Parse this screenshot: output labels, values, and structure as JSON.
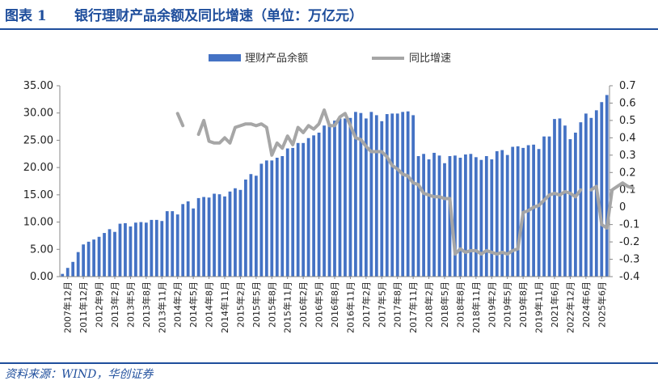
{
  "header": {
    "figure_no": "图表 1",
    "title": "银行理财产品余额及同比增速（单位：万亿元）"
  },
  "footer": {
    "source": "资料来源：WIND，华创证券"
  },
  "colors": {
    "bar": "#4472c4",
    "line": "#a6a6a6",
    "accent": "#1f4e9c"
  },
  "chart_data": {
    "type": "bar",
    "grid": false,
    "legend_position": "top-center",
    "y_left": {
      "min": 0,
      "max": 35,
      "step": 5,
      "ticks": [
        "0.00",
        "5.00",
        "10.00",
        "15.00",
        "20.00",
        "25.00",
        "30.00",
        "35.00"
      ]
    },
    "y_right": {
      "min": -0.4,
      "max": 0.7,
      "step": 0.1,
      "ticks": [
        "-0.4",
        "-0.3",
        "-0.2",
        "-0.1",
        "0",
        "0.1",
        "0.2",
        "0.3",
        "0.4",
        "0.5",
        "0.6",
        "0.7"
      ]
    },
    "x_tick_labels": [
      "2007年12月",
      "2011年12月",
      "2012年9月",
      "2013年2月",
      "2013年5月",
      "2013年8月",
      "2013年11月",
      "2014年2月",
      "2014年5月",
      "2014年8月",
      "2014年11月",
      "2015年2月",
      "2015年5月",
      "2015年8月",
      "2015年11月",
      "2016年2月",
      "2016年5月",
      "2016年8月",
      "2016年11月",
      "2017年2月",
      "2017年5月",
      "2017年8月",
      "2017年11月",
      "2018年2月",
      "2018年5月",
      "2018年8月",
      "2018年11月",
      "2019年2月",
      "2019年5月",
      "2019年8月",
      "2019年11月",
      "2021年6月",
      "2022年12月",
      "2024年6月",
      "2025年6月"
    ],
    "series": [
      {
        "name": "理财产品余额",
        "kind": "bar",
        "axis": "left",
        "values": [
          0.5,
          1.6,
          2.7,
          4.5,
          5.9,
          6.4,
          6.8,
          7.3,
          8.0,
          8.7,
          8.2,
          9.7,
          9.8,
          9.2,
          9.9,
          10.0,
          9.9,
          10.4,
          10.4,
          10.2,
          12.0,
          12.0,
          11.4,
          13.3,
          13.8,
          12.5,
          14.4,
          14.6,
          14.5,
          15.2,
          15.1,
          14.7,
          15.6,
          16.2,
          15.9,
          17.8,
          18.8,
          18.5,
          20.7,
          21.3,
          21.3,
          21.8,
          22.1,
          23.5,
          23.6,
          24.5,
          24.5,
          25.4,
          25.9,
          26.4,
          27.7,
          28.0,
          28.6,
          29.0,
          29.0,
          29.1,
          30.2,
          30.0,
          29.0,
          30.2,
          29.6,
          28.5,
          29.8,
          29.9,
          29.9,
          30.2,
          30.3,
          29.6,
          22.1,
          22.5,
          21.5,
          22.7,
          22.2,
          20.8,
          22.1,
          22.2,
          21.8,
          22.4,
          22.5,
          21.9,
          21.4,
          22.1,
          21.5,
          23.0,
          23.2,
          22.3,
          23.8,
          23.9,
          23.6,
          24.1,
          24.2,
          23.4,
          25.7,
          25.7,
          28.9,
          29.0,
          27.7,
          25.2,
          26.4,
          28.3,
          29.9,
          29.1,
          30.5,
          32.0,
          33.3
        ]
      },
      {
        "name": "同比增速",
        "kind": "line",
        "axis": "right",
        "values": [
          null,
          null,
          null,
          null,
          null,
          null,
          null,
          null,
          null,
          null,
          null,
          null,
          null,
          null,
          null,
          null,
          null,
          null,
          null,
          null,
          null,
          null,
          null,
          null,
          null,
          null,
          null,
          null,
          null,
          null,
          null,
          null,
          null,
          null,
          null,
          null,
          null,
          null,
          null,
          null,
          null,
          null,
          null,
          null,
          null,
          null,
          null,
          null,
          null,
          null,
          null,
          null,
          null,
          null,
          null,
          null,
          null,
          null,
          null,
          null,
          null,
          null,
          null,
          null,
          null,
          null,
          null,
          null,
          null,
          null,
          null,
          null,
          null,
          null,
          null,
          null,
          null,
          null,
          null,
          null,
          null,
          null,
          null,
          null,
          null,
          null,
          null,
          null,
          null,
          null,
          null,
          null,
          null,
          null,
          null,
          null,
          null,
          null,
          null,
          null,
          null,
          null,
          null,
          null,
          null
        ],
        "segments": [
          [
            [
              22,
              0.54
            ],
            [
              23,
              0.47
            ]
          ],
          [
            [
              26,
              0.42
            ],
            [
              27,
              0.5
            ],
            [
              28,
              0.38
            ],
            [
              29,
              0.37
            ],
            [
              30,
              0.37
            ],
            [
              31,
              0.4
            ],
            [
              32,
              0.37
            ],
            [
              33,
              0.46
            ],
            [
              34,
              0.47
            ],
            [
              35,
              0.48
            ],
            [
              36,
              0.48
            ],
            [
              37,
              0.47
            ],
            [
              38,
              0.48
            ],
            [
              39,
              0.46
            ],
            [
              40,
              0.3
            ],
            [
              41,
              0.37
            ],
            [
              42,
              0.34
            ],
            [
              43,
              0.41
            ],
            [
              44,
              0.36
            ],
            [
              45,
              0.46
            ],
            [
              46,
              0.43
            ],
            [
              47,
              0.47
            ],
            [
              48,
              0.45
            ],
            [
              49,
              0.48
            ],
            [
              50,
              0.56
            ],
            [
              51,
              0.47
            ],
            [
              52,
              0.47
            ],
            [
              53,
              0.52
            ],
            [
              54,
              0.54
            ],
            [
              55,
              0.47
            ],
            [
              56,
              0.4
            ],
            [
              57,
              0.39
            ],
            [
              58,
              0.35
            ],
            [
              59,
              0.32
            ],
            [
              60,
              0.32
            ],
            [
              61,
              0.32
            ],
            [
              62,
              0.29
            ],
            [
              63,
              0.24
            ],
            [
              64,
              0.22
            ],
            [
              65,
              0.19
            ],
            [
              66,
              0.18
            ],
            [
              67,
              0.14
            ],
            [
              68,
              0.13
            ],
            [
              69,
              0.08
            ],
            [
              70,
              0.07
            ],
            [
              71,
              0.06
            ],
            [
              72,
              0.06
            ],
            [
              73,
              0.05
            ],
            [
              74,
              0.05
            ],
            [
              75,
              -0.27
            ],
            [
              76,
              -0.24
            ],
            [
              77,
              -0.26
            ],
            [
              78,
              -0.25
            ],
            [
              79,
              -0.25
            ],
            [
              80,
              -0.27
            ],
            [
              81,
              -0.25
            ],
            [
              82,
              -0.26
            ],
            [
              83,
              -0.27
            ],
            [
              84,
              -0.26
            ],
            [
              85,
              -0.27
            ],
            [
              86,
              -0.25
            ],
            [
              87,
              -0.24
            ],
            [
              88,
              -0.03
            ],
            [
              89,
              -0.02
            ],
            [
              90,
              0
            ],
            [
              91,
              0.01
            ],
            [
              92,
              0.04
            ],
            [
              93,
              0.07
            ],
            [
              94,
              0.08
            ],
            [
              95,
              0.07
            ],
            [
              96,
              0.09
            ],
            [
              97,
              0.08
            ],
            [
              98,
              0.06
            ],
            [
              99,
              0.1
            ]
          ],
          [
            [
              101,
              0.1
            ],
            [
              102,
              0.12
            ],
            [
              103,
              -0.1
            ],
            [
              104,
              -0.12
            ],
            [
              105,
              0.1
            ],
            [
              106,
              0.12
            ],
            [
              107,
              0.14
            ],
            [
              108,
              0.12
            ],
            [
              109,
              0.11
            ]
          ]
        ]
      }
    ]
  }
}
